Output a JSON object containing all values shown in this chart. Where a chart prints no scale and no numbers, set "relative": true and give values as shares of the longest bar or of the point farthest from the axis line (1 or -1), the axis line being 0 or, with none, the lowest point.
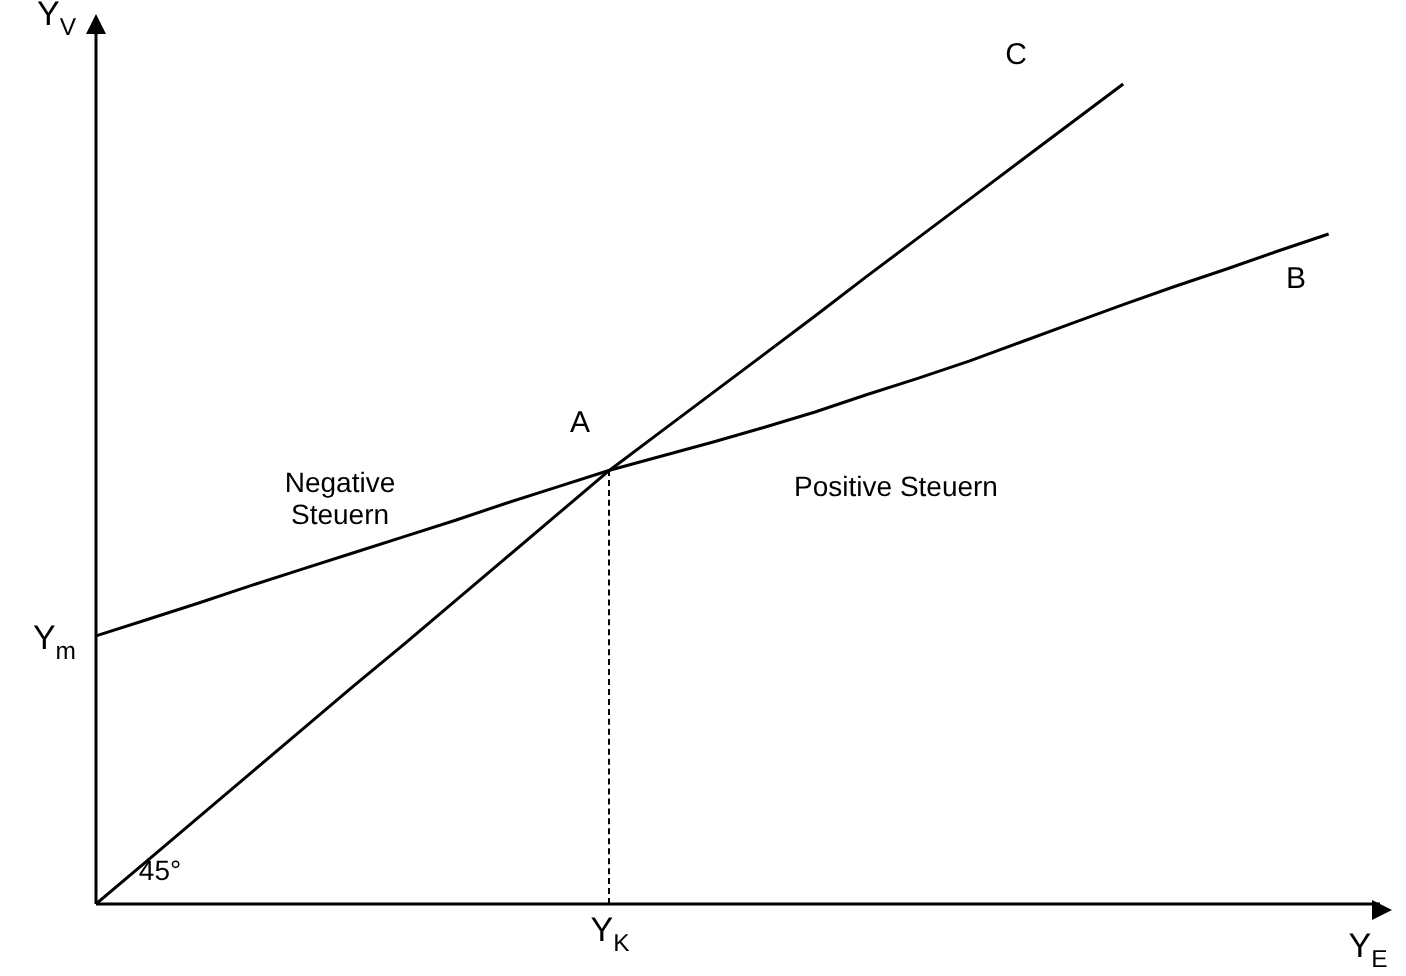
{
  "chart_data": {
    "type": "line",
    "relative": true,
    "xlabel": "Y$_{E}$",
    "ylabel": "Y$_{V}$",
    "categories": [
      null,
      null,
      null,
      null,
      null,
      null,
      null,
      null,
      null,
      null,
      null,
      null,
      null,
      null,
      null,
      null,
      null,
      null,
      null,
      null,
      null,
      null,
      null,
      null,
      null,
      null
    ],
    "series": [
      {
        "color": "#000000",
        "values": [
          0,
          0.053,
          0.106,
          0.159,
          0.212,
          0.265,
          0.317,
          0.37,
          0.423,
          0.476,
          0.529,
          0.576,
          0.623,
          0.67,
          0.717,
          0.765,
          0.812,
          0.859,
          0.906,
          0.953,
          1.0,
          null,
          null,
          null,
          null,
          null
        ]
      },
      {
        "color": "#000000",
        "values": [
          0.327,
          0.347,
          0.367,
          0.388,
          0.408,
          0.428,
          0.448,
          0.468,
          0.489,
          0.509,
          0.529,
          0.546,
          0.563,
          0.581,
          0.6,
          0.621,
          0.641,
          0.662,
          0.685,
          0.708,
          0.731,
          0.753,
          0.774,
          0.796,
          0.817,
          null
        ]
      }
    ],
    "annotations": [
      "Y$_{K}$",
      "A",
      "B",
      "C",
      "Y$_{m}$",
      "Negative Steuern",
      "Positive Steuern",
      "45°"
    ],
    "marker": "none",
    "legend": false
  }
}
